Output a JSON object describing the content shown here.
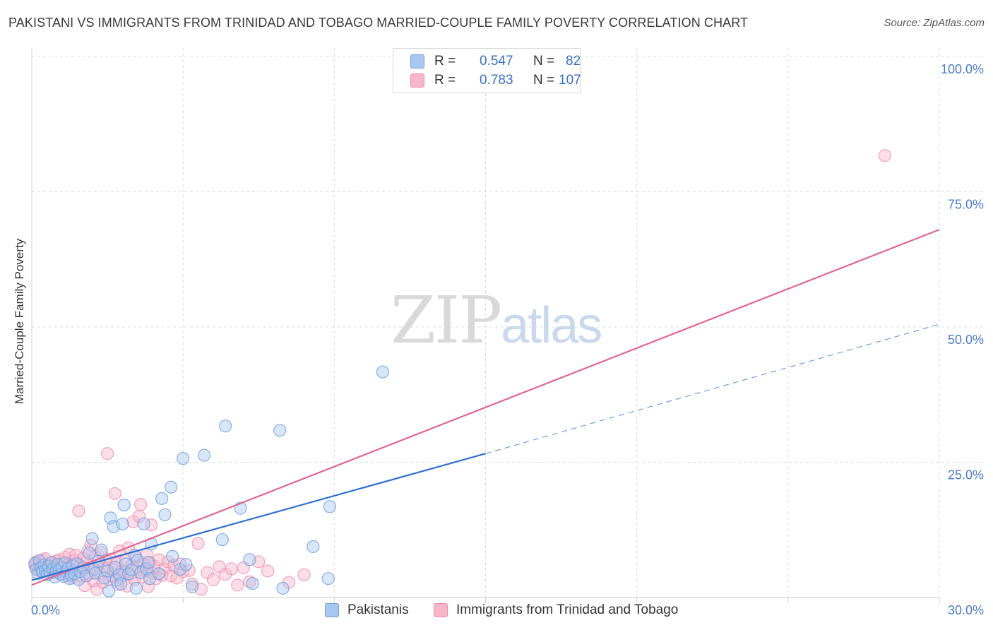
{
  "title": "PAKISTANI VS IMMIGRANTS FROM TRINIDAD AND TOBAGO MARRIED-COUPLE FAMILY POVERTY CORRELATION CHART",
  "source": "Source: ZipAtlas.com",
  "watermark": {
    "zip": "ZIP",
    "atlas": "atlas"
  },
  "legend": {
    "rows": [
      {
        "r_label": "R =",
        "r_value": "0.547",
        "n_label": "N =",
        "n_value": "82"
      },
      {
        "r_label": "R =",
        "r_value": "0.783",
        "n_label": "N =",
        "n_value": "107"
      }
    ]
  },
  "bottom_legend": {
    "items": [
      "Pakistanis",
      "Immigrants from Trinidad and Tobago"
    ]
  },
  "colors": {
    "pakistanis_fill": "#a9c8f0",
    "pakistanis_stroke": "#6f9ee0",
    "pakistanis_line": "#2f6fcf",
    "trinidad_fill": "#f7b6c9",
    "trinidad_stroke": "#ef8aab",
    "trinidad_line": "#e06693",
    "grid": "#dcdcdc",
    "tick_text": "#4a7cc9"
  },
  "chart_data": {
    "type": "scatter",
    "title": "PAKISTANI VS IMMIGRANTS FROM TRINIDAD AND TOBAGO MARRIED-COUPLE FAMILY POVERTY CORRELATION CHART",
    "xlabel": "",
    "ylabel": "Married-Couple Family Poverty",
    "xlim": [
      0,
      30
    ],
    "ylim": [
      0,
      100
    ],
    "x_tick_labels": [
      "0.0%",
      "30.0%"
    ],
    "y_ticks": [
      25,
      50,
      75,
      100
    ],
    "y_tick_labels": [
      "25.0%",
      "50.0%",
      "75.0%",
      "100.0%"
    ],
    "series": [
      {
        "name": "Pakistanis",
        "r": 0.547,
        "n": 82,
        "trend": {
          "x0": 0,
          "y0": 3.2,
          "x1": 15,
          "y1": 26.6,
          "dashed_to_x": 30,
          "dashed_to_y": 50.5
        },
        "points": [
          [
            0.1,
            6.3
          ],
          [
            0.15,
            5.2
          ],
          [
            0.2,
            4.4
          ],
          [
            0.25,
            6.8
          ],
          [
            0.3,
            5.5
          ],
          [
            0.35,
            4.8
          ],
          [
            0.4,
            6.0
          ],
          [
            0.45,
            5.0
          ],
          [
            0.5,
            4.2
          ],
          [
            0.55,
            5.8
          ],
          [
            0.6,
            4.6
          ],
          [
            0.65,
            6.5
          ],
          [
            0.7,
            5.3
          ],
          [
            0.75,
            3.8
          ],
          [
            0.8,
            4.9
          ],
          [
            0.85,
            6.1
          ],
          [
            0.9,
            5.0
          ],
          [
            0.95,
            4.3
          ],
          [
            1.0,
            5.6
          ],
          [
            1.05,
            3.9
          ],
          [
            1.1,
            6.4
          ],
          [
            1.15,
            4.7
          ],
          [
            1.2,
            5.4
          ],
          [
            1.25,
            3.5
          ],
          [
            1.3,
            4.1
          ],
          [
            1.35,
            5.9
          ],
          [
            1.4,
            4.4
          ],
          [
            1.5,
            6.2
          ],
          [
            1.55,
            3.3
          ],
          [
            1.6,
            4.8
          ],
          [
            1.7,
            5.5
          ],
          [
            1.8,
            4.0
          ],
          [
            1.9,
            8.2
          ],
          [
            2.0,
            10.9
          ],
          [
            2.05,
            5.2
          ],
          [
            2.1,
            4.5
          ],
          [
            2.2,
            6.7
          ],
          [
            2.3,
            8.8
          ],
          [
            2.4,
            3.6
          ],
          [
            2.5,
            4.9
          ],
          [
            2.55,
            1.2
          ],
          [
            2.6,
            14.7
          ],
          [
            2.7,
            13.1
          ],
          [
            2.75,
            5.6
          ],
          [
            2.8,
            3.2
          ],
          [
            2.9,
            4.2
          ],
          [
            2.95,
            2.5
          ],
          [
            3.0,
            13.6
          ],
          [
            3.05,
            17.1
          ],
          [
            3.1,
            6.2
          ],
          [
            3.2,
            4.4
          ],
          [
            3.3,
            5.1
          ],
          [
            3.4,
            7.8
          ],
          [
            3.45,
            1.7
          ],
          [
            3.5,
            6.9
          ],
          [
            3.6,
            4.6
          ],
          [
            3.7,
            13.6
          ],
          [
            3.8,
            5.3
          ],
          [
            3.85,
            6.5
          ],
          [
            3.9,
            3.5
          ],
          [
            3.95,
            9.9
          ],
          [
            4.2,
            4.4
          ],
          [
            4.3,
            18.3
          ],
          [
            4.4,
            15.3
          ],
          [
            4.6,
            20.4
          ],
          [
            4.65,
            7.6
          ],
          [
            4.9,
            5.2
          ],
          [
            5.0,
            25.7
          ],
          [
            5.1,
            6.1
          ],
          [
            5.3,
            2.0
          ],
          [
            5.7,
            26.3
          ],
          [
            6.3,
            10.7
          ],
          [
            6.4,
            31.7
          ],
          [
            6.9,
            16.5
          ],
          [
            7.2,
            7.0
          ],
          [
            7.3,
            2.6
          ],
          [
            8.2,
            30.9
          ],
          [
            8.3,
            1.7
          ],
          [
            9.3,
            9.4
          ],
          [
            9.8,
            3.5
          ],
          [
            9.85,
            16.8
          ],
          [
            11.6,
            41.7
          ]
        ]
      },
      {
        "name": "Immigrants from Trinidad and Tobago",
        "r": 0.783,
        "n": 107,
        "trend": {
          "x0": 0,
          "y0": 2.3,
          "x1": 30,
          "y1": 68.0
        },
        "points": [
          [
            0.1,
            5.9
          ],
          [
            0.15,
            6.6
          ],
          [
            0.2,
            5.1
          ],
          [
            0.25,
            6.2
          ],
          [
            0.3,
            4.8
          ],
          [
            0.35,
            6.9
          ],
          [
            0.4,
            5.6
          ],
          [
            0.45,
            7.2
          ],
          [
            0.5,
            4.9
          ],
          [
            0.55,
            6.0
          ],
          [
            0.6,
            5.3
          ],
          [
            0.65,
            6.4
          ],
          [
            0.7,
            4.6
          ],
          [
            0.75,
            5.8
          ],
          [
            0.8,
            6.7
          ],
          [
            0.85,
            5.0
          ],
          [
            0.9,
            7.0
          ],
          [
            0.95,
            4.4
          ],
          [
            1.0,
            6.3
          ],
          [
            1.05,
            5.5
          ],
          [
            1.1,
            7.4
          ],
          [
            1.15,
            4.1
          ],
          [
            1.2,
            6.1
          ],
          [
            1.25,
            8.0
          ],
          [
            1.3,
            5.2
          ],
          [
            1.35,
            3.6
          ],
          [
            1.4,
            6.8
          ],
          [
            1.45,
            7.8
          ],
          [
            1.5,
            4.7
          ],
          [
            1.55,
            16.0
          ],
          [
            1.6,
            5.9
          ],
          [
            1.65,
            3.9
          ],
          [
            1.7,
            7.3
          ],
          [
            1.75,
            2.2
          ],
          [
            1.8,
            6.5
          ],
          [
            1.85,
            8.6
          ],
          [
            1.9,
            4.3
          ],
          [
            1.95,
            9.7
          ],
          [
            2.0,
            5.4
          ],
          [
            2.05,
            3.1
          ],
          [
            2.1,
            7.6
          ],
          [
            2.15,
            1.5
          ],
          [
            2.2,
            6.0
          ],
          [
            2.25,
            4.5
          ],
          [
            2.3,
            8.3
          ],
          [
            2.35,
            2.8
          ],
          [
            2.4,
            5.7
          ],
          [
            2.45,
            6.9
          ],
          [
            2.5,
            26.6
          ],
          [
            2.55,
            3.4
          ],
          [
            2.6,
            7.1
          ],
          [
            2.65,
            4.0
          ],
          [
            2.7,
            5.2
          ],
          [
            2.75,
            19.2
          ],
          [
            2.8,
            6.3
          ],
          [
            2.85,
            2.4
          ],
          [
            2.9,
            8.6
          ],
          [
            2.95,
            3.7
          ],
          [
            3.0,
            5.0
          ],
          [
            3.05,
            4.6
          ],
          [
            3.1,
            6.8
          ],
          [
            3.15,
            2.1
          ],
          [
            3.2,
            9.2
          ],
          [
            3.25,
            4.2
          ],
          [
            3.3,
            5.9
          ],
          [
            3.35,
            14.0
          ],
          [
            3.4,
            3.3
          ],
          [
            3.45,
            7.5
          ],
          [
            3.5,
            5.5
          ],
          [
            3.55,
            15.0
          ],
          [
            3.6,
            17.2
          ],
          [
            3.65,
            3.8
          ],
          [
            3.7,
            6.1
          ],
          [
            3.75,
            4.9
          ],
          [
            3.8,
            8.0
          ],
          [
            3.85,
            2.0
          ],
          [
            3.9,
            6.5
          ],
          [
            3.95,
            13.4
          ],
          [
            4.0,
            4.5
          ],
          [
            4.05,
            5.8
          ],
          [
            4.1,
            3.5
          ],
          [
            4.2,
            7.0
          ],
          [
            4.3,
            4.1
          ],
          [
            4.4,
            5.3
          ],
          [
            4.5,
            6.6
          ],
          [
            4.6,
            4.0
          ],
          [
            4.7,
            5.9
          ],
          [
            4.8,
            3.6
          ],
          [
            4.9,
            6.2
          ],
          [
            5.0,
            4.8
          ],
          [
            5.2,
            5.0
          ],
          [
            5.3,
            2.5
          ],
          [
            5.5,
            10.0
          ],
          [
            5.6,
            1.5
          ],
          [
            5.8,
            4.6
          ],
          [
            6.0,
            3.3
          ],
          [
            6.2,
            5.7
          ],
          [
            6.4,
            4.3
          ],
          [
            6.6,
            5.3
          ],
          [
            6.8,
            2.3
          ],
          [
            7.0,
            5.5
          ],
          [
            7.2,
            2.9
          ],
          [
            7.5,
            6.6
          ],
          [
            7.8,
            4.9
          ],
          [
            8.5,
            2.8
          ],
          [
            9.0,
            4.2
          ],
          [
            28.2,
            81.7
          ]
        ]
      }
    ]
  }
}
